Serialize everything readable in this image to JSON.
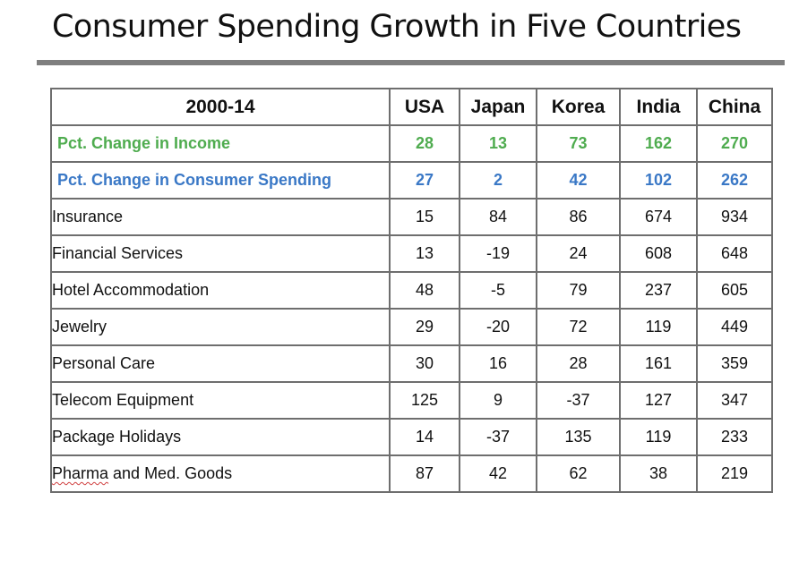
{
  "title": "Consumer Spending Growth in Five Countries",
  "colors": {
    "income": "#4fac4f",
    "spending": "#3a78c6",
    "rule": "#7f7f7f",
    "border": "#6e6e6e"
  },
  "chart_data": {
    "type": "table",
    "title": "Consumer Spending Growth in Five Countries",
    "period_label": "2000-14",
    "columns": [
      "USA",
      "Japan",
      "Korea",
      "India",
      "China"
    ],
    "summary_rows": [
      {
        "label": "Pct. Change in Income",
        "style": "income",
        "values": [
          28,
          13,
          73,
          162,
          270
        ]
      },
      {
        "label": "Pct. Change in Consumer Spending",
        "style": "spending",
        "values": [
          27,
          2,
          42,
          102,
          262
        ]
      }
    ],
    "rows": [
      {
        "label": "Insurance",
        "values": [
          15,
          84,
          86,
          674,
          934
        ]
      },
      {
        "label": "Financial Services",
        "values": [
          13,
          -19,
          24,
          608,
          648
        ]
      },
      {
        "label": "Hotel Accommodation",
        "values": [
          48,
          -5,
          79,
          237,
          605
        ]
      },
      {
        "label": "Jewelry",
        "values": [
          29,
          -20,
          72,
          119,
          449
        ]
      },
      {
        "label": "Personal Care",
        "values": [
          30,
          16,
          28,
          161,
          359
        ]
      },
      {
        "label": "Telecom Equipment",
        "values": [
          125,
          9,
          -37,
          127,
          347
        ]
      },
      {
        "label": "Package Holidays",
        "values": [
          14,
          -37,
          135,
          119,
          233
        ]
      },
      {
        "label": "Pharma and Med. Goods",
        "values": [
          87,
          42,
          62,
          38,
          219
        ],
        "spellcheck_word": "Pharma"
      }
    ]
  }
}
